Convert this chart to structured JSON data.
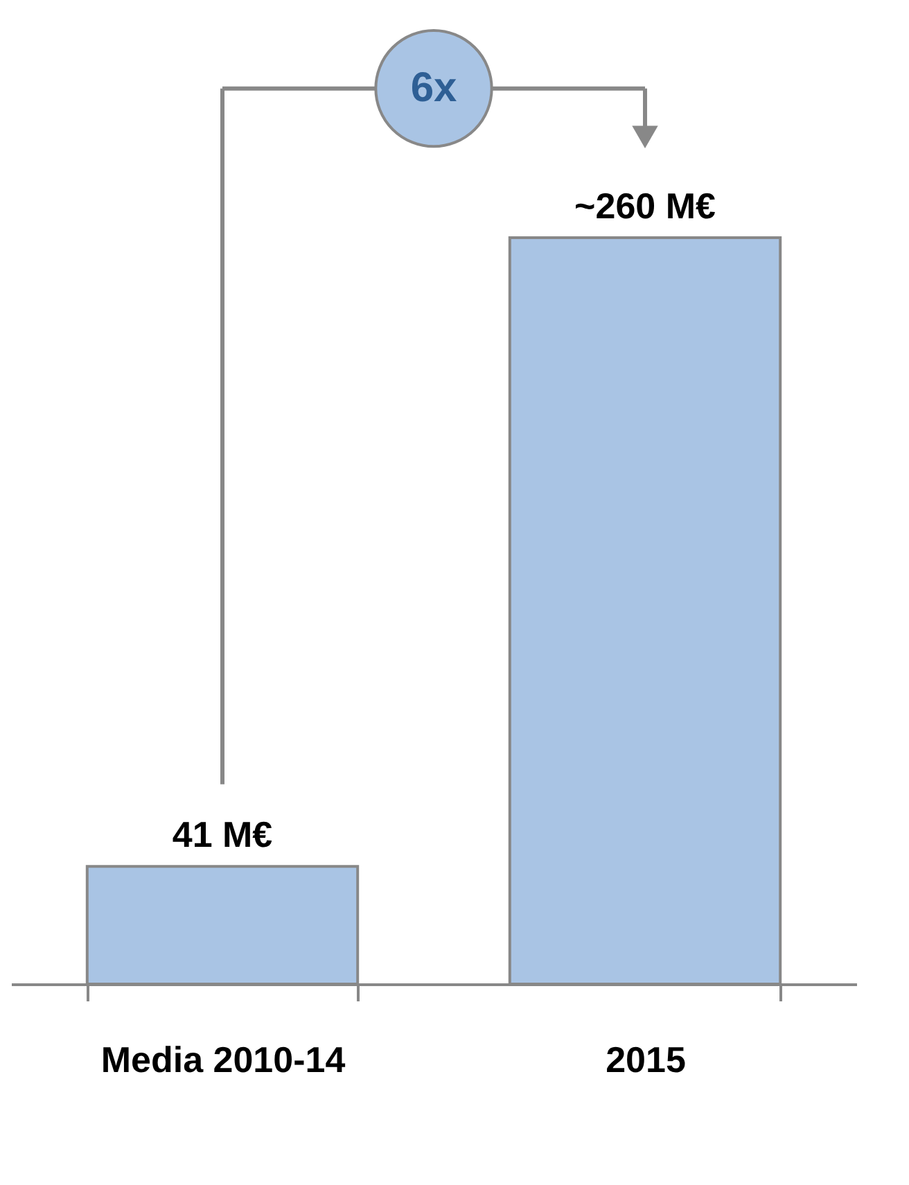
{
  "chart_data": {
    "type": "bar",
    "categories": [
      "Media 2010-14",
      "2015"
    ],
    "values": [
      41,
      260
    ],
    "value_labels": [
      "41 M€",
      "~260 M€"
    ],
    "color": "#a9c4e4",
    "annotations": [
      "6x"
    ]
  }
}
